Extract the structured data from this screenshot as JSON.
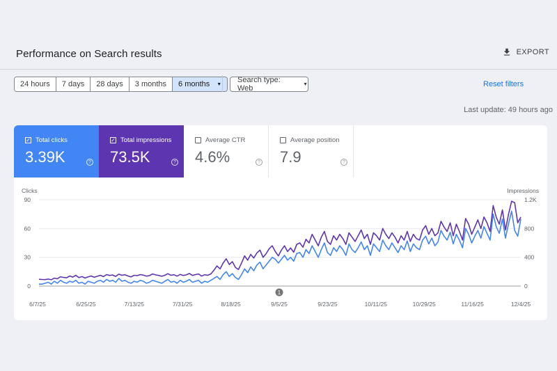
{
  "header": {
    "title": "Performance on Search results",
    "export_label": "EXPORT",
    "export_icon": "download-icon"
  },
  "filters": {
    "ranges": [
      "24 hours",
      "7 days",
      "28 days",
      "3 months",
      "6 months"
    ],
    "active_range": "6 months",
    "search_type": "Search type: Web",
    "reset_label": "Reset filters"
  },
  "last_update": "Last update: 49 hours ago",
  "metrics": [
    {
      "label": "Total clicks",
      "value": "3.39K",
      "checked": true,
      "color": "#4285f4"
    },
    {
      "label": "Total impressions",
      "value": "73.5K",
      "checked": true,
      "color": "#5e35b1"
    },
    {
      "label": "Average CTR",
      "value": "4.6%",
      "checked": false
    },
    {
      "label": "Average position",
      "value": "7.9",
      "checked": false
    }
  ],
  "chart_data": {
    "type": "line",
    "left_axis_label": "Clicks",
    "right_axis_label": "Impressions",
    "left_ticks": [
      "0",
      "30",
      "60",
      "90"
    ],
    "right_ticks": [
      "0",
      "400",
      "800",
      "1.2K"
    ],
    "ylim_left": [
      0,
      90
    ],
    "ylim_right": [
      0,
      1200
    ],
    "x_tick_labels": [
      "6/7/25",
      "6/25/25",
      "7/13/25",
      "7/31/25",
      "8/18/25",
      "9/5/25",
      "9/23/25",
      "10/11/25",
      "10/29/25",
      "11/16/25",
      "12/4/25"
    ],
    "annotation": {
      "label": "1",
      "date": "9/5/25"
    },
    "grid": true,
    "series": [
      {
        "name": "Clicks",
        "axis": "left",
        "color": "#4285f4",
        "values": [
          2,
          2,
          3,
          4,
          2,
          5,
          3,
          6,
          4,
          3,
          5,
          4,
          6,
          3,
          4,
          2,
          5,
          4,
          3,
          5,
          6,
          4,
          7,
          5,
          6,
          4,
          8,
          5,
          6,
          4,
          3,
          5,
          4,
          6,
          5,
          3,
          4,
          6,
          5,
          4,
          3,
          5,
          7,
          4,
          5,
          3,
          6,
          4,
          5,
          7,
          4,
          5,
          6,
          3,
          5,
          4,
          6,
          8,
          10,
          7,
          12,
          15,
          10,
          13,
          9,
          7,
          12,
          18,
          14,
          20,
          16,
          22,
          25,
          18,
          22,
          26,
          30,
          28,
          24,
          28,
          32,
          27,
          30,
          26,
          34,
          35,
          30,
          38,
          34,
          42,
          36,
          30,
          38,
          45,
          35,
          32,
          40,
          36,
          42,
          38,
          32,
          44,
          38,
          35,
          40,
          46,
          38,
          42,
          32,
          44,
          40,
          36,
          48,
          42,
          38,
          45,
          40,
          35,
          42,
          38,
          47,
          36,
          44,
          40,
          38,
          48,
          52,
          44,
          50,
          42,
          46,
          58,
          52,
          48,
          56,
          44,
          54,
          48,
          40,
          60,
          54,
          45,
          52,
          58,
          50,
          62,
          55,
          48,
          75,
          62,
          55,
          70,
          50,
          65,
          78,
          58,
          52,
          70
        ],
        "color_name": "blue"
      },
      {
        "name": "Impressions",
        "axis": "right",
        "color": "#5e35b1",
        "values": [
          95,
          92,
          90,
          98,
          88,
          110,
          102,
          130,
          120,
          115,
          140,
          125,
          150,
          118,
          132,
          112,
          128,
          140,
          122,
          136,
          150,
          132,
          160,
          148,
          154,
          135,
          165,
          150,
          158,
          140,
          128,
          150,
          145,
          160,
          152,
          138,
          145,
          168,
          156,
          148,
          136,
          150,
          172,
          150,
          158,
          138,
          162,
          148,
          156,
          175,
          148,
          160,
          168,
          138,
          158,
          150,
          168,
          220,
          280,
          240,
          320,
          380,
          300,
          340,
          260,
          230,
          320,
          420,
          360,
          440,
          390,
          460,
          500,
          400,
          450,
          520,
          560,
          480,
          420,
          500,
          560,
          480,
          530,
          470,
          580,
          600,
          540,
          650,
          600,
          720,
          640,
          560,
          680,
          760,
          620,
          580,
          700,
          640,
          720,
          660,
          580,
          740,
          680,
          620,
          700,
          780,
          660,
          720,
          580,
          740,
          700,
          640,
          800,
          720,
          660,
          740,
          680,
          600,
          700,
          640,
          760,
          620,
          720,
          660,
          640,
          780,
          840,
          720,
          800,
          700,
          740,
          900,
          820,
          760,
          880,
          700,
          860,
          760,
          640,
          940,
          860,
          720,
          820,
          920,
          800,
          960,
          880,
          760,
          1120,
          960,
          860,
          1060,
          780,
          1000,
          1180,
          1160,
          880,
          960
        ]
      }
    ]
  }
}
